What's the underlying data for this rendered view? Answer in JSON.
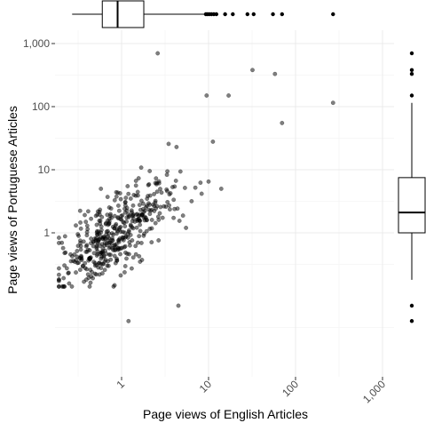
{
  "chart_data": {
    "type": "scatter",
    "title": "",
    "xlabel": "Page views of English Articles",
    "ylabel": "Page views of Portuguese Articles",
    "x_scale": "log10",
    "y_scale": "log10",
    "xlim": [
      0.16,
      2400
    ],
    "ylim": [
      0.025,
      2000
    ],
    "x_ticks": [
      1,
      10,
      100,
      1000
    ],
    "x_tick_labels": [
      "1",
      "10",
      "100",
      "1,000"
    ],
    "y_ticks": [
      1,
      10,
      100,
      1000
    ],
    "y_tick_labels": [
      "1",
      "10",
      "100",
      "1,000"
    ],
    "grid": true,
    "marginal_plots": "boxplots on top (x) and right (y)",
    "point_color": "#000000",
    "point_opacity": 0.5,
    "points_visible_outliers": [
      [
        2.6,
        700
      ],
      [
        32,
        380
      ],
      [
        58,
        330
      ],
      [
        270,
        115
      ],
      [
        70,
        55
      ],
      [
        4.5,
        0.07
      ],
      [
        1.2,
        0.04
      ],
      [
        5.5,
        1.2
      ],
      [
        9.5,
        150
      ],
      [
        17,
        150
      ],
      [
        10,
        6.5
      ],
      [
        14,
        5
      ]
    ],
    "cloud_description_count": 450,
    "x_boxplot": {
      "whisker_low": 0.27,
      "q1": 0.6,
      "median": 0.9,
      "q3": 1.8,
      "whisker_high": 9.0,
      "outliers": [
        9.3,
        9.7,
        10.2,
        10.8,
        11.5,
        12.3,
        15.5,
        19,
        28,
        33,
        55,
        70,
        270
      ]
    },
    "y_boxplot": {
      "whisker_low": 0.18,
      "q1": 1.0,
      "median": 2.1,
      "q3": 7.5,
      "whisker_high": 115,
      "outliers": [
        150,
        330,
        380,
        700,
        0.07,
        0.04
      ]
    }
  }
}
